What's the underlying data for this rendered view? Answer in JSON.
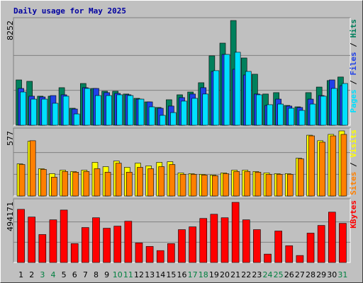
{
  "chart_data": [
    {
      "type": "bar",
      "title": "Daily usage for May 2025",
      "legend_separator": " / ",
      "ylim": [
        0,
        8252
      ],
      "yticks": [
        8252
      ],
      "grid": true,
      "series": [
        {
          "name": "Hits",
          "color": "#00805c",
          "values": [
            3570,
            3460,
            2290,
            2290,
            2960,
            1340,
            3290,
            2900,
            2680,
            2680,
            2460,
            2120,
            1840,
            1400,
            2010,
            2400,
            2620,
            3350,
            5470,
            6470,
            8252,
            5300,
            4020,
            2460,
            2570,
            1560,
            1450,
            2570,
            3010,
            3520,
            3800
          ]
        },
        {
          "name": "Files",
          "color": "#2040e8",
          "values": [
            2900,
            2290,
            2230,
            2340,
            2400,
            1280,
            2960,
            2900,
            2570,
            2510,
            2400,
            2060,
            1840,
            1340,
            1510,
            2180,
            2460,
            2960,
            4240,
            5580,
            4410,
            3960,
            2460,
            1560,
            2060,
            1510,
            1400,
            2060,
            2340,
            3570,
            3120
          ]
        },
        {
          "name": "Pages",
          "color": "#00e0ff",
          "values": [
            2620,
            2060,
            2060,
            1730,
            2290,
            890,
            2900,
            2340,
            2340,
            2400,
            2340,
            2060,
            1450,
            780,
            1000,
            1900,
            2120,
            2460,
            4300,
            5580,
            5750,
            4240,
            2400,
            1620,
            1670,
            1340,
            1170,
            1670,
            2290,
            2900,
            3290
          ]
        }
      ]
    },
    {
      "type": "bar",
      "ylim": [
        0,
        577
      ],
      "yticks": [
        577
      ],
      "grid": true,
      "series": [
        {
          "name": "Visits",
          "color": "#ffff00",
          "values": [
            285,
            485,
            242,
            198,
            229,
            217,
            229,
            298,
            260,
            310,
            254,
            291,
            267,
            298,
            304,
            205,
            198,
            192,
            186,
            205,
            229,
            229,
            217,
            205,
            198,
            198,
            335,
            539,
            490,
            546,
            577
          ]
        },
        {
          "name": "Sites",
          "color": "#ff8000",
          "values": [
            279,
            490,
            236,
            167,
            217,
            211,
            217,
            242,
            211,
            291,
            211,
            254,
            242,
            260,
            279,
            192,
            192,
            186,
            180,
            198,
            217,
            217,
            211,
            192,
            192,
            192,
            329,
            533,
            477,
            533,
            546
          ]
        }
      ]
    },
    {
      "type": "bar",
      "ylim": [
        0,
        494171
      ],
      "yticks": [
        494171
      ],
      "grid": true,
      "categories": [
        "1",
        "2",
        "3",
        "4",
        "5",
        "6",
        "7",
        "8",
        "9",
        "10",
        "11",
        "12",
        "13",
        "14",
        "15",
        "16",
        "17",
        "18",
        "19",
        "20",
        "21",
        "22",
        "23",
        "24",
        "25",
        "26",
        "27",
        "28",
        "29",
        "30",
        "31"
      ],
      "category_colors": [
        "#000000",
        "#000000",
        "#008040",
        "#008040",
        "#000000",
        "#000000",
        "#000000",
        "#000000",
        "#000000",
        "#008040",
        "#008040",
        "#000000",
        "#000000",
        "#000000",
        "#000000",
        "#000000",
        "#008040",
        "#008040",
        "#000000",
        "#000000",
        "#000000",
        "#000000",
        "#000000",
        "#008040",
        "#008040",
        "#000000",
        "#000000",
        "#000000",
        "#000000",
        "#000000",
        "#008040"
      ],
      "series": [
        {
          "name": "KBytes",
          "color": "#ff0000",
          "values": [
            431700,
            369200,
            227200,
            346500,
            426000,
            153400,
            284000,
            363500,
            278300,
            295400,
            335100,
            159000,
            130600,
            96600,
            153400,
            267000,
            289700,
            357800,
            391900,
            363500,
            488500,
            346500,
            267000,
            68200,
            255600,
            136300,
            56800,
            238600,
            301000,
            409000,
            318100
          ]
        }
      ]
    }
  ]
}
